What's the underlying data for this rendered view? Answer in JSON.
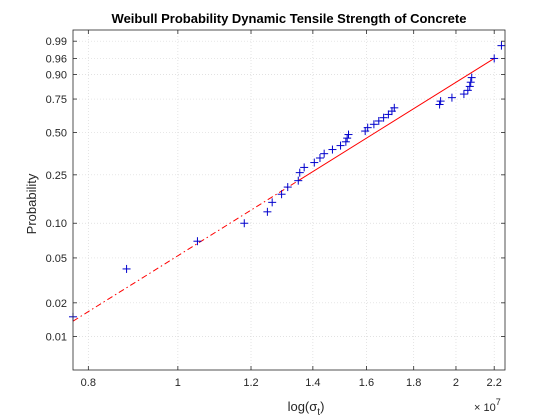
{
  "chart_data": {
    "type": "scatter",
    "title": "Weibull Probability Dynamic Tensile Strength of Concrete",
    "xlabel": "log(σ",
    "xlabel_sub": "t",
    "xlabel_close": ")",
    "ylabel": "Probability",
    "x_multiplier": "× 10",
    "x_multiplier_exp": "7",
    "x_scale": "log",
    "y_scale": "weibull",
    "xlim": [
      7700000,
      22600000
    ],
    "ylim": [
      0.005,
      0.997
    ],
    "x_ticks": [
      8000000,
      10000000,
      12000000,
      14000000,
      16000000,
      18000000,
      20000000,
      22000000
    ],
    "x_tick_labels": [
      "0.8",
      "1",
      "1.2",
      "1.4",
      "1.6",
      "1.8",
      "2",
      "2.2"
    ],
    "y_ticks": [
      0.01,
      0.02,
      0.05,
      0.1,
      0.25,
      0.5,
      0.75,
      0.9,
      0.96,
      0.99
    ],
    "y_tick_labels": [
      "0.01",
      "0.02",
      "0.05",
      "0.10",
      "0.25",
      "0.50",
      "0.75",
      "0.90",
      "0.96",
      "0.99"
    ],
    "grid": true,
    "marker_color": "#0000cc",
    "fit_color": "#ff0000",
    "points": [
      {
        "x": 7700000,
        "y": 0.015
      },
      {
        "x": 8800000,
        "y": 0.04
      },
      {
        "x": 10500000,
        "y": 0.07
      },
      {
        "x": 11800000,
        "y": 0.1
      },
      {
        "x": 12500000,
        "y": 0.125
      },
      {
        "x": 12650000,
        "y": 0.15
      },
      {
        "x": 12950000,
        "y": 0.175
      },
      {
        "x": 13150000,
        "y": 0.2
      },
      {
        "x": 13500000,
        "y": 0.225
      },
      {
        "x": 13550000,
        "y": 0.26
      },
      {
        "x": 13700000,
        "y": 0.285
      },
      {
        "x": 14050000,
        "y": 0.31
      },
      {
        "x": 14250000,
        "y": 0.335
      },
      {
        "x": 14400000,
        "y": 0.36
      },
      {
        "x": 14700000,
        "y": 0.385
      },
      {
        "x": 15000000,
        "y": 0.41
      },
      {
        "x": 15200000,
        "y": 0.435
      },
      {
        "x": 15250000,
        "y": 0.46
      },
      {
        "x": 15300000,
        "y": 0.485
      },
      {
        "x": 15950000,
        "y": 0.51
      },
      {
        "x": 16050000,
        "y": 0.535
      },
      {
        "x": 16300000,
        "y": 0.56
      },
      {
        "x": 16500000,
        "y": 0.585
      },
      {
        "x": 16700000,
        "y": 0.61
      },
      {
        "x": 16900000,
        "y": 0.635
      },
      {
        "x": 17050000,
        "y": 0.66
      },
      {
        "x": 17150000,
        "y": 0.685
      },
      {
        "x": 19200000,
        "y": 0.71
      },
      {
        "x": 19250000,
        "y": 0.735
      },
      {
        "x": 19800000,
        "y": 0.76
      },
      {
        "x": 20400000,
        "y": 0.785
      },
      {
        "x": 20600000,
        "y": 0.81
      },
      {
        "x": 20700000,
        "y": 0.835
      },
      {
        "x": 20750000,
        "y": 0.86
      },
      {
        "x": 20800000,
        "y": 0.885
      },
      {
        "x": 22000000,
        "y": 0.96
      },
      {
        "x": 22400000,
        "y": 0.985
      }
    ],
    "fit_line": {
      "solid_range": [
        13500000,
        22000000
      ],
      "dashed_range": [
        7700000,
        13500000
      ],
      "p1": {
        "x": 13500000,
        "y": 0.225
      },
      "p2": {
        "x": 22000000,
        "y": 0.96
      }
    }
  }
}
